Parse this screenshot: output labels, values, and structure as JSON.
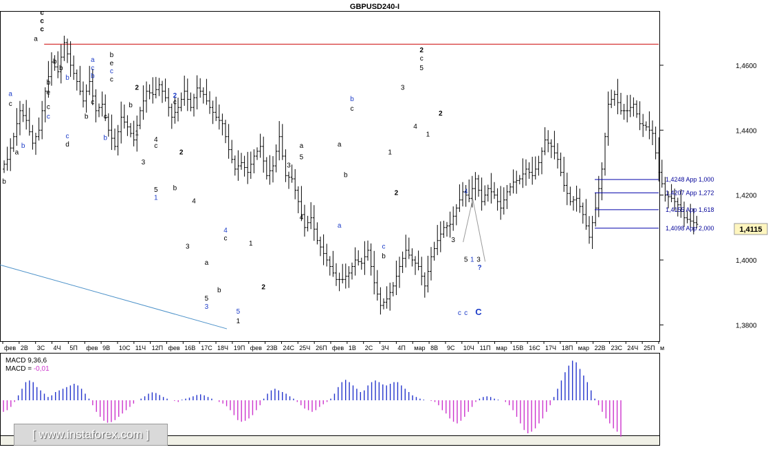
{
  "window": {
    "title": "GBPUSD240-I"
  },
  "colors": {
    "candle": "#000000",
    "resistance_line": "#cc0000",
    "trend_line": "#4a90c8",
    "fib_line": "#0000aa",
    "fib_label": "#000099",
    "macd_pos": "#2233cc",
    "macd_neg": "#cc33cc",
    "wave_black": "#000000",
    "wave_blue": "#1c3cc8",
    "price_box": "#fff6bf"
  },
  "chart_data": {
    "type": "candlestick",
    "symbol": "GBPUSD240-I",
    "ylim": [
      1.375,
      1.4765
    ],
    "y_ticks": [
      "1,4600",
      "1,4400",
      "1,4200",
      "1,4000",
      "1,3800"
    ],
    "y_tick_values": [
      1.46,
      1.44,
      1.42,
      1.4,
      1.38
    ],
    "current_price": "1,4115",
    "current_price_value": 1.4115,
    "x_ticks": [
      "фев",
      "2В",
      "3С",
      "4Ч",
      "5П",
      "фев",
      "9В",
      "10С",
      "11Ч",
      "12П",
      "фев",
      "16В",
      "17С",
      "18Ч",
      "19П",
      "фев",
      "23В",
      "24С",
      "25Ч",
      "26П",
      "фев",
      "1В",
      "2С",
      "3Ч",
      "4П",
      "мар",
      "8В",
      "9С",
      "10Ч",
      "11П",
      "мар",
      "15В",
      "16С",
      "17Ч",
      "18П",
      "мар",
      "22В",
      "23С",
      "24Ч",
      "25П",
      "м"
    ],
    "resistance_level": 1.4665,
    "fib_levels": [
      {
        "value": 1.4248,
        "label": "1,4248 App 1,000"
      },
      {
        "value": 1.4207,
        "label": "1,4207 App 1,272"
      },
      {
        "value": 1.4155,
        "label": "1,4155 App 1,618"
      },
      {
        "value": 1.4098,
        "label": "1,4098 App 2,000"
      }
    ],
    "price_path": [
      1.428,
      1.431,
      1.438,
      1.446,
      1.443,
      1.436,
      1.44,
      1.452,
      1.461,
      1.458,
      1.467,
      1.46,
      1.455,
      1.449,
      1.455,
      1.446,
      1.448,
      1.44,
      1.435,
      1.444,
      1.441,
      1.437,
      1.446,
      1.452,
      1.451,
      1.454,
      1.45,
      1.444,
      1.447,
      1.452,
      1.447,
      1.453,
      1.451,
      1.447,
      1.444,
      1.442,
      1.434,
      1.428,
      1.43,
      1.427,
      1.432,
      1.435,
      1.426,
      1.429,
      1.438,
      1.426,
      1.425,
      1.418,
      1.41,
      1.413,
      1.406,
      1.402,
      1.398,
      1.394,
      1.394,
      1.396,
      1.4,
      1.399,
      1.403,
      1.393,
      1.386,
      1.388,
      1.392,
      1.398,
      1.403,
      1.4,
      1.398,
      1.392,
      1.401,
      1.406,
      1.41,
      1.411,
      1.416,
      1.421,
      1.419,
      1.425,
      1.418,
      1.422,
      1.42,
      1.416,
      1.421,
      1.424,
      1.425,
      1.428,
      1.426,
      1.43,
      1.437,
      1.435,
      1.431,
      1.423,
      1.418,
      1.419,
      1.414,
      1.407,
      1.416,
      1.428,
      1.448,
      1.451,
      1.446,
      1.446,
      1.448,
      1.442,
      1.441,
      1.439,
      1.427,
      1.42,
      1.419,
      1.417,
      1.413,
      1.412,
      1.411
    ],
    "waves": [
      {
        "label": "a",
        "color": "blue",
        "idx": 1,
        "val": 1.4505
      },
      {
        "label": "c",
        "color": "black",
        "idx": 1,
        "val": 1.4475
      },
      {
        "label": "b",
        "color": "blue",
        "idx": 3,
        "val": 1.4345
      },
      {
        "label": "a",
        "color": "black",
        "idx": 2,
        "val": 1.4325
      },
      {
        "label": "b",
        "color": "black",
        "idx": 0,
        "val": 1.4235
      },
      {
        "label": "c",
        "color": "black",
        "idx": 6,
        "val": 1.4755
      },
      {
        "label": "c",
        "color": "black",
        "idx": 6,
        "val": 1.473
      },
      {
        "label": "c",
        "color": "black",
        "idx": 6,
        "val": 1.4705
      },
      {
        "label": "a",
        "color": "black",
        "idx": 5,
        "val": 1.4675
      },
      {
        "label": "b",
        "color": "black",
        "idx": 9,
        "val": 1.4585
      },
      {
        "label": "b",
        "color": "black",
        "idx": 7,
        "val": 1.454
      },
      {
        "label": "e",
        "color": "black",
        "idx": 7,
        "val": 1.451
      },
      {
        "label": "c",
        "color": "black",
        "idx": 7,
        "val": 1.4465
      },
      {
        "label": "c",
        "color": "blue",
        "idx": 7,
        "val": 1.4435
      },
      {
        "label": "b",
        "color": "black",
        "idx": 8,
        "val": 1.4605
      },
      {
        "label": "b",
        "color": "blue",
        "idx": 10,
        "val": 1.4555
      },
      {
        "label": "c",
        "color": "blue",
        "idx": 10,
        "val": 1.4375
      },
      {
        "label": "d",
        "color": "black",
        "idx": 10,
        "val": 1.435
      },
      {
        "label": "a",
        "color": "blue",
        "idx": 14,
        "val": 1.461
      },
      {
        "label": "c",
        "color": "blue",
        "idx": 14,
        "val": 1.4585
      },
      {
        "label": "b",
        "color": "blue",
        "idx": 14,
        "val": 1.456
      },
      {
        "label": "c",
        "color": "black",
        "idx": 14,
        "val": 1.448
      },
      {
        "label": "b",
        "color": "black",
        "idx": 13,
        "val": 1.4435
      },
      {
        "label": "c",
        "color": "black",
        "idx": 16,
        "val": 1.4435
      },
      {
        "label": "b",
        "color": "blue",
        "idx": 16,
        "val": 1.437
      },
      {
        "label": "b",
        "color": "black",
        "idx": 17,
        "val": 1.4625
      },
      {
        "label": "e",
        "color": "black",
        "idx": 17,
        "val": 1.46
      },
      {
        "label": "c",
        "color": "blue",
        "idx": 17,
        "val": 1.4575
      },
      {
        "label": "c",
        "color": "black",
        "idx": 17,
        "val": 1.455
      },
      {
        "label": "b",
        "color": "black",
        "idx": 20,
        "val": 1.447
      },
      {
        "label": "2",
        "color": "black",
        "idx": 21,
        "val": 1.4525
      },
      {
        "label": "1",
        "color": "black",
        "idx": 21,
        "val": 1.4385
      },
      {
        "label": "3",
        "color": "black",
        "idx": 22,
        "val": 1.4295
      },
      {
        "label": "4",
        "color": "black",
        "idx": 24,
        "val": 1.4365
      },
      {
        "label": "c",
        "color": "black",
        "idx": 24,
        "val": 1.4345
      },
      {
        "label": "5",
        "color": "black",
        "idx": 24,
        "val": 1.421
      },
      {
        "label": "1",
        "color": "blue",
        "idx": 24,
        "val": 1.4185
      },
      {
        "label": "2",
        "color": "blue",
        "idx": 27,
        "val": 1.45
      },
      {
        "label": "c",
        "color": "black",
        "idx": 27,
        "val": 1.448
      },
      {
        "label": "2",
        "color": "black",
        "idx": 28,
        "val": 1.4325
      },
      {
        "label": "b",
        "color": "black",
        "idx": 27,
        "val": 1.4215
      },
      {
        "label": "4",
        "color": "black",
        "idx": 30,
        "val": 1.4175
      },
      {
        "label": "3",
        "color": "black",
        "idx": 29,
        "val": 1.4035
      },
      {
        "label": "a",
        "color": "black",
        "idx": 32,
        "val": 1.3985
      },
      {
        "label": "4",
        "color": "blue",
        "idx": 35,
        "val": 1.4085
      },
      {
        "label": "c",
        "color": "black",
        "idx": 35,
        "val": 1.406
      },
      {
        "label": "5",
        "color": "black",
        "idx": 32,
        "val": 1.3875
      },
      {
        "label": "3",
        "color": "blue",
        "idx": 32,
        "val": 1.385
      },
      {
        "label": "b",
        "color": "black",
        "idx": 34,
        "val": 1.39
      },
      {
        "label": "5",
        "color": "blue",
        "idx": 37,
        "val": 1.3835
      },
      {
        "label": "1",
        "color": "black",
        "idx": 37,
        "val": 1.3805
      },
      {
        "label": "1",
        "color": "black",
        "idx": 39,
        "val": 1.4045
      },
      {
        "label": "2",
        "color": "black",
        "idx": 41,
        "val": 1.391
      },
      {
        "label": "3",
        "color": "black",
        "idx": 45,
        "val": 1.4285
      },
      {
        "label": "4",
        "color": "black",
        "idx": 47,
        "val": 1.4125
      },
      {
        "label": "a",
        "color": "black",
        "idx": 47,
        "val": 1.4345
      },
      {
        "label": "5",
        "color": "black",
        "idx": 47,
        "val": 1.431
      },
      {
        "label": "a",
        "color": "blue",
        "idx": 53,
        "val": 1.41
      },
      {
        "label": "a",
        "color": "black",
        "idx": 53,
        "val": 1.435
      },
      {
        "label": "b",
        "color": "black",
        "idx": 54,
        "val": 1.4255
      },
      {
        "label": "b",
        "color": "blue",
        "idx": 55,
        "val": 1.449
      },
      {
        "label": "c",
        "color": "black",
        "idx": 55,
        "val": 1.446
      },
      {
        "label": "c",
        "color": "blue",
        "idx": 60,
        "val": 1.4035
      },
      {
        "label": "b",
        "color": "black",
        "idx": 60,
        "val": 1.4005
      },
      {
        "label": "1",
        "color": "black",
        "idx": 61,
        "val": 1.4325
      },
      {
        "label": "2",
        "color": "black",
        "idx": 62,
        "val": 1.42
      },
      {
        "label": "3",
        "color": "black",
        "idx": 63,
        "val": 1.4525
      },
      {
        "label": "4",
        "color": "black",
        "idx": 65,
        "val": 1.4405
      },
      {
        "label": "2",
        "color": "black",
        "idx": 66,
        "val": 1.464
      },
      {
        "label": "c",
        "color": "black",
        "idx": 66,
        "val": 1.4615
      },
      {
        "label": "5",
        "color": "black",
        "idx": 66,
        "val": 1.4585
      },
      {
        "label": "1",
        "color": "black",
        "idx": 67,
        "val": 1.438
      },
      {
        "label": "2",
        "color": "black",
        "idx": 69,
        "val": 1.4445
      },
      {
        "label": "4",
        "color": "blue",
        "idx": 73,
        "val": 1.4205
      },
      {
        "label": "3",
        "color": "black",
        "idx": 71,
        "val": 1.4055
      },
      {
        "label": "5",
        "color": "black",
        "idx": 73,
        "val": 1.3995
      },
      {
        "label": "1",
        "color": "blue",
        "idx": 74,
        "val": 1.3995
      },
      {
        "label": "3",
        "color": "black",
        "idx": 75,
        "val": 1.3995
      },
      {
        "label": "?",
        "color": "blue",
        "idx": 73,
        "val": 1.397
      },
      {
        "label": "c",
        "color": "blue",
        "idx": 72,
        "val": 1.383
      },
      {
        "label": "c",
        "color": "blue",
        "idx": 73,
        "val": 1.383
      },
      {
        "label": "C",
        "color": "blue",
        "idx": 75,
        "val": 1.383
      }
    ],
    "macd_label": "MACD 9,36,6",
    "macd_value_label": "MACD = ",
    "macd_value": "-0,01",
    "macd_bars": [
      -0.35,
      -0.3,
      -0.2,
      -0.05,
      0.15,
      0.35,
      0.55,
      0.6,
      0.55,
      0.4,
      0.3,
      0.2,
      0.1,
      0.15,
      0.25,
      0.3,
      0.35,
      0.4,
      0.45,
      0.5,
      0.45,
      0.35,
      0.2,
      0.05,
      -0.15,
      -0.35,
      -0.5,
      -0.62,
      -0.68,
      -0.66,
      -0.6,
      -0.5,
      -0.4,
      -0.3,
      -0.2,
      -0.1,
      0.0,
      0.05,
      0.12,
      0.2,
      0.24,
      0.22,
      0.16,
      0.1,
      0.05,
      0.0,
      -0.02,
      -0.05,
      0.02,
      0.05,
      0.08,
      0.12,
      0.16,
      0.18,
      0.15,
      0.1,
      0.05,
      0.0,
      -0.05,
      -0.1,
      -0.18,
      -0.3,
      -0.45,
      -0.6,
      -0.65,
      -0.62,
      -0.55,
      -0.45,
      -0.3,
      -0.15,
      0.05,
      0.2,
      0.3,
      0.35,
      0.3,
      0.25,
      0.2,
      0.12,
      0.05,
      -0.05,
      -0.15,
      -0.25,
      -0.3,
      -0.35,
      -0.3,
      -0.2,
      -0.12,
      -0.05,
      0.05,
      0.2,
      0.4,
      0.55,
      0.62,
      0.55,
      0.45,
      0.35,
      0.25,
      0.3,
      0.45,
      0.55,
      0.6,
      0.55,
      0.48,
      0.45,
      0.5,
      0.55,
      0.55,
      0.45,
      0.35,
      0.25,
      0.15,
      0.1,
      0.05,
      0.02,
      0.0,
      -0.02,
      -0.05,
      -0.15,
      -0.3,
      -0.4,
      -0.55,
      -0.65,
      -0.7,
      -0.62,
      -0.5,
      -0.35,
      -0.2,
      -0.05,
      0.05,
      0.1,
      0.12,
      0.1,
      0.05,
      0.02,
      0.0,
      -0.05,
      -0.15,
      -0.3,
      -0.5,
      -0.7,
      -0.9,
      -1.0,
      -0.95,
      -0.85,
      -0.7,
      -0.55,
      -0.35,
      -0.15,
      0.1,
      0.35,
      0.6,
      0.85,
      1.05,
      1.2,
      1.15,
      0.95,
      0.75,
      0.55,
      0.3,
      0.05,
      -0.15,
      -0.35,
      -0.55,
      -0.7,
      -0.85,
      -0.95,
      -1.1
    ]
  }
}
